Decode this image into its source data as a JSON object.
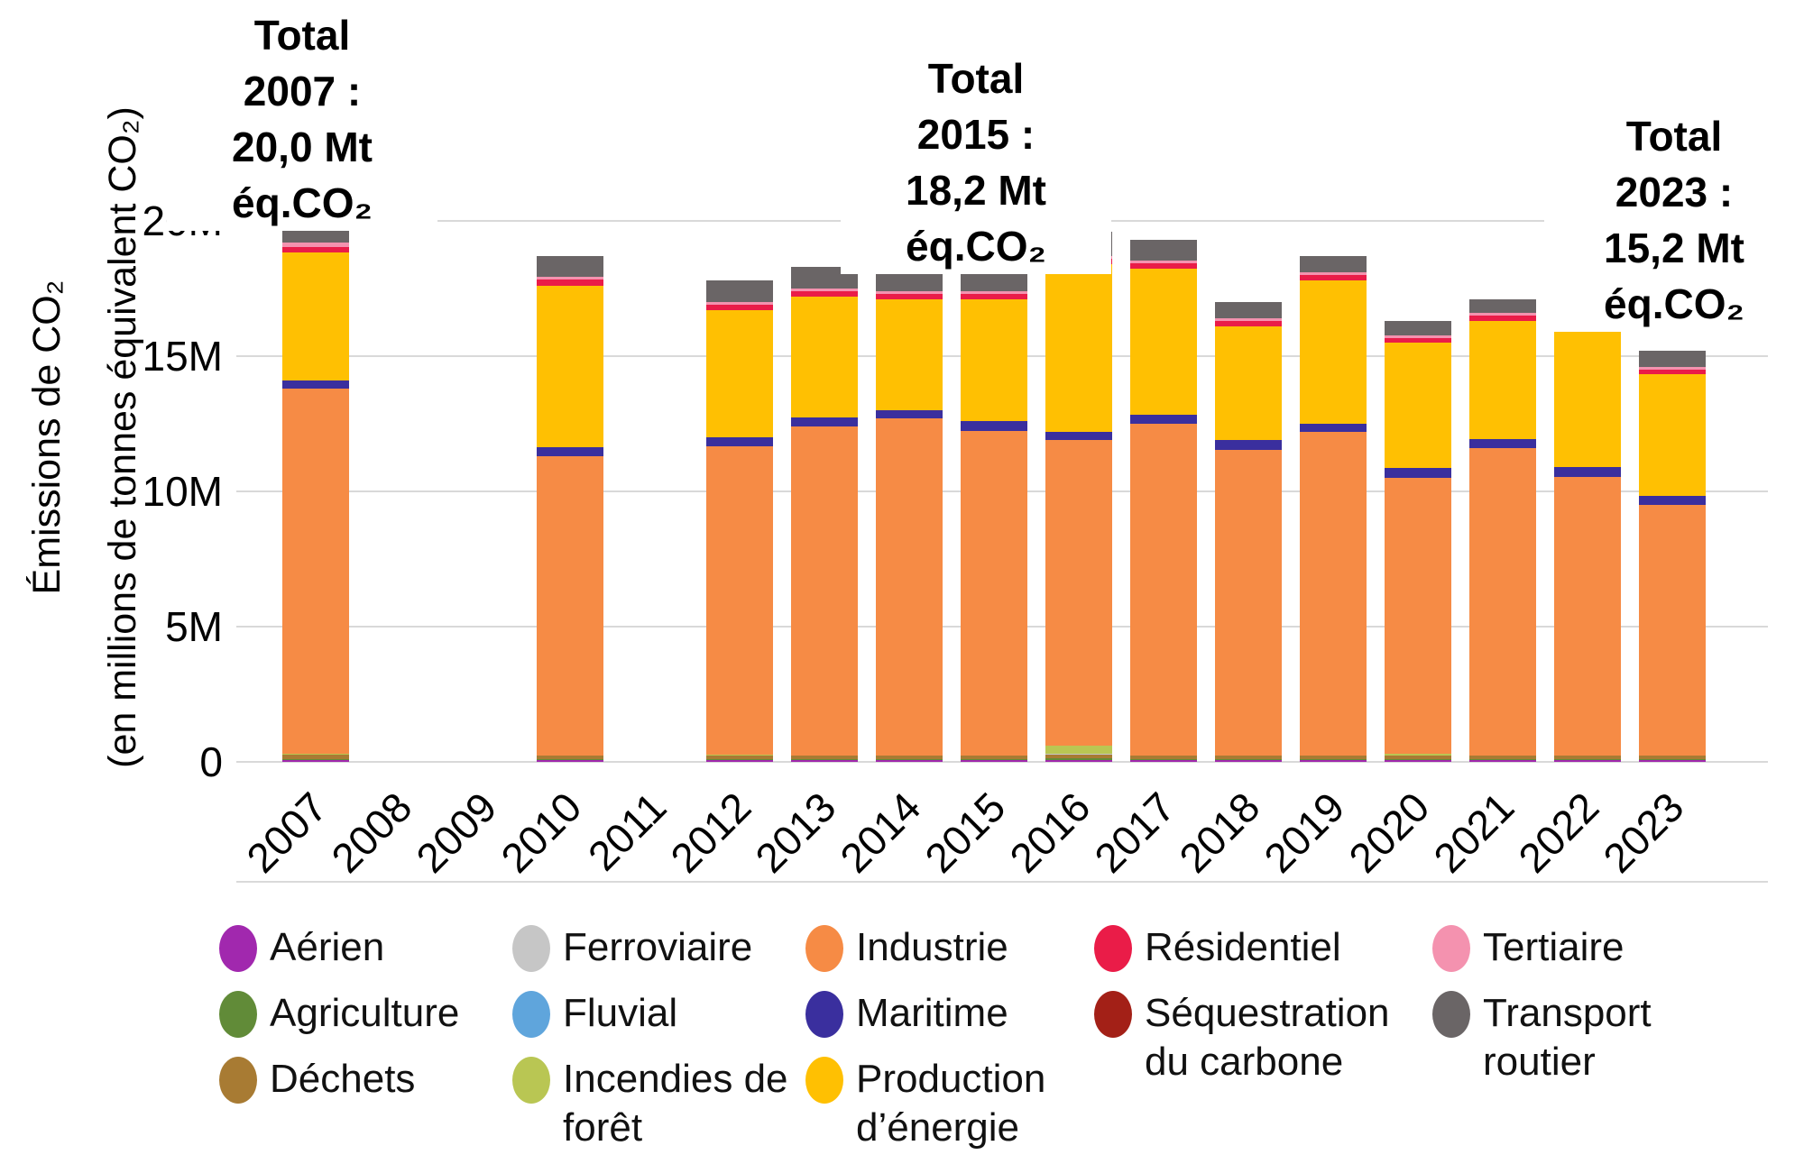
{
  "chart_data": {
    "type": "bar",
    "stacked": true,
    "title": "",
    "ylabel_lines": [
      "Émissions de CO₂",
      "(en millions de tonnes équivalent CO₂)"
    ],
    "ylim": [
      0,
      20
    ],
    "unit": "Mt éq.CO₂",
    "grid": true,
    "y_gridlines": [
      {
        "label": "20M",
        "value": 20
      },
      {
        "label": "15M",
        "value": 15
      },
      {
        "label": "10M",
        "value": 10
      },
      {
        "label": "5M",
        "value": 5
      },
      {
        "label": "0",
        "value": 0
      }
    ],
    "categories": [
      "2007",
      "2008",
      "2009",
      "2010",
      "2011",
      "2012",
      "2013",
      "2014",
      "2015",
      "2016",
      "2017",
      "2018",
      "2019",
      "2020",
      "2021",
      "2022",
      "2023"
    ],
    "series": [
      {
        "name": "Aérien",
        "color": "#A128AE",
        "values": [
          0.05,
          0,
          0,
          0.05,
          0,
          0.05,
          0.05,
          0.05,
          0.05,
          0.05,
          0.05,
          0.05,
          0.05,
          0.05,
          0.05,
          0.05,
          0.05
        ]
      },
      {
        "name": "Agriculture",
        "color": "#618B38",
        "values": [
          0.05,
          0,
          0,
          0.04,
          0,
          0.04,
          0.04,
          0.04,
          0.04,
          0.08,
          0.04,
          0.04,
          0.04,
          0.04,
          0.04,
          0.04,
          0.04
        ]
      },
      {
        "name": "Déchets",
        "color": "#A87B33",
        "values": [
          0.15,
          0,
          0,
          0.13,
          0,
          0.13,
          0.13,
          0.13,
          0.13,
          0.15,
          0.13,
          0.13,
          0.13,
          0.13,
          0.13,
          0.13,
          0.13
        ]
      },
      {
        "name": "Ferroviaire",
        "color": "#C6C6C6",
        "values": [
          0.01,
          0,
          0,
          0.01,
          0,
          0.01,
          0.01,
          0.01,
          0.01,
          0.01,
          0.01,
          0.01,
          0.01,
          0.01,
          0.01,
          0.01,
          0.01
        ]
      },
      {
        "name": "Fluvial",
        "color": "#5FA5DC",
        "values": [
          0.01,
          0,
          0,
          0.01,
          0,
          0.01,
          0.01,
          0.01,
          0.01,
          0.01,
          0.01,
          0.01,
          0.01,
          0.01,
          0.01,
          0.01,
          0.01
        ]
      },
      {
        "name": "Incendies de forêt",
        "color": "#B9C653",
        "values": [
          0.02,
          0,
          0,
          0.01,
          0,
          0.01,
          0.01,
          0.01,
          0.01,
          0.3,
          0.01,
          0.01,
          0.01,
          0.05,
          0.01,
          0.01,
          0.01
        ]
      },
      {
        "name": "Industrie",
        "color": "#F68B45",
        "values": [
          13.51,
          0,
          0,
          11.05,
          0,
          11.41,
          12.15,
          12.45,
          12.0,
          11.3,
          12.25,
          11.3,
          11.95,
          10.22,
          11.35,
          10.3,
          9.25
        ]
      },
      {
        "name": "Maritime",
        "color": "#3A2F9E",
        "values": [
          0.3,
          0,
          0,
          0.35,
          0,
          0.34,
          0.35,
          0.3,
          0.35,
          0.3,
          0.35,
          0.35,
          0.3,
          0.35,
          0.35,
          0.35,
          0.35
        ]
      },
      {
        "name": "Production d’énergie",
        "color": "#FFC002",
        "values": [
          4.75,
          0,
          0,
          5.95,
          0,
          4.7,
          4.45,
          4.1,
          4.5,
          6.2,
          5.4,
          4.2,
          5.3,
          4.65,
          4.35,
          5.25,
          4.5
        ]
      },
      {
        "name": "Résidentiel",
        "color": "#EA1C48",
        "values": [
          0.2,
          0,
          0,
          0.25,
          0,
          0.2,
          0.2,
          0.2,
          0.2,
          0.2,
          0.2,
          0.2,
          0.2,
          0.15,
          0.2,
          0.2,
          0.15
        ]
      },
      {
        "name": "Séquestration du carbone",
        "color": "#A32017",
        "values": [
          0,
          0,
          0,
          0,
          0,
          0,
          0,
          0,
          0,
          0,
          0,
          0,
          0,
          0,
          0,
          0,
          0
        ]
      },
      {
        "name": "Tertiaire",
        "color": "#F492AF",
        "values": [
          0.15,
          0,
          0,
          0.1,
          0,
          0.1,
          0.1,
          0.1,
          0.1,
          0.1,
          0.1,
          0.1,
          0.1,
          0.1,
          0.1,
          0.1,
          0.1
        ]
      },
      {
        "name": "Transport routier",
        "color": "#6A6566",
        "values": [
          0.8,
          0,
          0,
          0.75,
          0,
          0.8,
          0.8,
          0.7,
          0.8,
          0.9,
          0.75,
          0.6,
          0.6,
          0.55,
          0.5,
          0.55,
          0.6
        ]
      }
    ],
    "legend_position": "bottom"
  },
  "annotations": {
    "a2007": {
      "lines": [
        "Total",
        "2007 :",
        "20,0 Mt",
        "éq.CO₂"
      ]
    },
    "a2015": {
      "lines": [
        "Total",
        "2015 :",
        "18,2 Mt",
        "éq.CO₂"
      ]
    },
    "a2023": {
      "lines": [
        "Total",
        "2023 :",
        "15,2 Mt",
        "éq.CO₂"
      ]
    }
  },
  "legend": {
    "columns": [
      [
        {
          "key": "aerien",
          "label": "Aérien",
          "color": "#A128AE"
        },
        {
          "key": "agriculture",
          "label": "Agriculture",
          "color": "#618B38"
        },
        {
          "key": "dechets",
          "label": "Déchets",
          "color": "#A87B33"
        }
      ],
      [
        {
          "key": "ferroviaire",
          "label": "Ferroviaire",
          "color": "#C6C6C6"
        },
        {
          "key": "fluvial",
          "label": "Fluvial",
          "color": "#5FA5DC"
        },
        {
          "key": "incendies-de-foret",
          "label": "Incendies de forêt",
          "color": "#B9C653"
        }
      ],
      [
        {
          "key": "industrie",
          "label": "Industrie",
          "color": "#F68B45"
        },
        {
          "key": "maritime",
          "label": "Maritime",
          "color": "#3A2F9E"
        },
        {
          "key": "production-d-energie",
          "label": "Production d’énergie",
          "color": "#FFC002"
        }
      ],
      [
        {
          "key": "residentiel",
          "label": "Résidentiel",
          "color": "#EA1C48"
        },
        {
          "key": "sequestration-du-carbone",
          "label": "Séquestration du carbone",
          "color": "#A32017"
        }
      ],
      [
        {
          "key": "tertiaire",
          "label": "Tertiaire",
          "color": "#F492AF"
        },
        {
          "key": "transport-routier",
          "label": "Transport routier",
          "color": "#6A6566"
        }
      ]
    ]
  }
}
